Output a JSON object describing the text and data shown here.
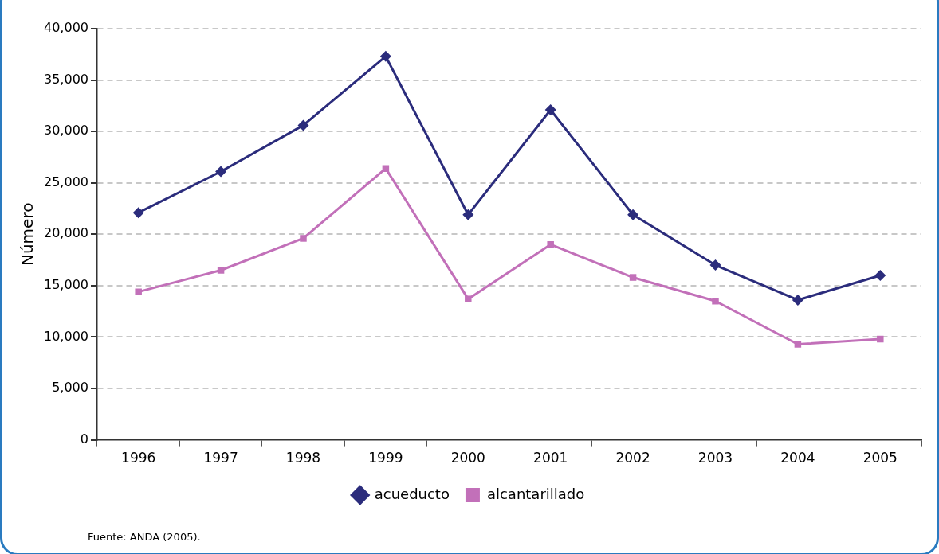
{
  "chart_data": {
    "type": "line",
    "ylabel": "Número",
    "categories": [
      "1996",
      "1997",
      "1998",
      "1999",
      "2000",
      "2001",
      "2002",
      "2003",
      "2004",
      "2005"
    ],
    "series": [
      {
        "name": "acueducto",
        "color": "#2b2c7c",
        "marker": "diamond",
        "values": [
          22100,
          26100,
          30600,
          37300,
          21900,
          32100,
          21900,
          17000,
          13600,
          16000
        ]
      },
      {
        "name": "alcantarillado",
        "color": "#c270b9",
        "marker": "square",
        "values": [
          14400,
          16500,
          19600,
          26400,
          13700,
          19000,
          15800,
          13500,
          9300,
          9800
        ]
      }
    ],
    "ylim": [
      0,
      40000
    ],
    "yticks": [
      0,
      {
        "value": 5000,
        "label": "5,000"
      },
      {
        "value": 10000,
        "label": "10,000"
      },
      {
        "value": 15000,
        "label": "15,000"
      },
      {
        "value": 20000,
        "label": "20,000"
      },
      {
        "value": 25000,
        "label": "25,000"
      },
      {
        "value": 30000,
        "label": "30,000"
      },
      {
        "value": 35000,
        "label": "35,000"
      },
      {
        "value": 40000,
        "label": "40,000"
      }
    ],
    "grid": "y",
    "legend": "bottom",
    "line_style": "solid",
    "annotations": [
      "Fuente: ANDA (2005)."
    ]
  }
}
